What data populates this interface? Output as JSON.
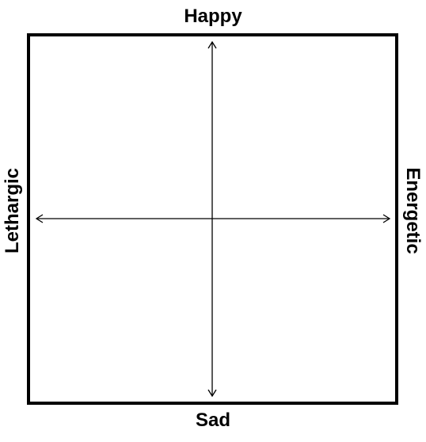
{
  "labels": {
    "top": "Happy",
    "bottom": "Sad",
    "left": "Lethargic",
    "right": "Energetic"
  },
  "colors": {
    "stroke": "#000000",
    "background": "#ffffff"
  }
}
